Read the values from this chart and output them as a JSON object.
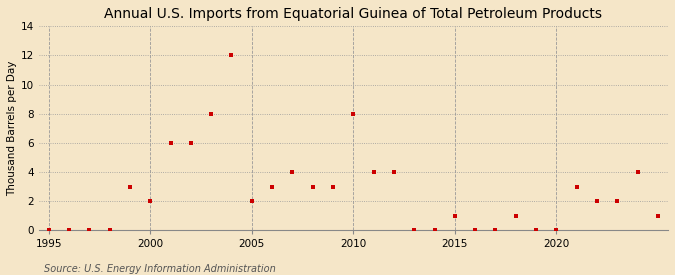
{
  "title": "Annual U.S. Imports from Equatorial Guinea of Total Petroleum Products",
  "ylabel": "Thousand Barrels per Day",
  "source": "Source: U.S. Energy Information Administration",
  "background_color": "#f5e6c8",
  "plot_bg_color": "#f5e6c8",
  "marker_color": "#cc0000",
  "xlim": [
    1994.5,
    2025.5
  ],
  "ylim": [
    0,
    14
  ],
  "yticks": [
    0,
    2,
    4,
    6,
    8,
    10,
    12,
    14
  ],
  "xticks": [
    1995,
    2000,
    2005,
    2010,
    2015,
    2020
  ],
  "data": [
    {
      "year": 1995,
      "value": 0
    },
    {
      "year": 1996,
      "value": 0
    },
    {
      "year": 1997,
      "value": 0
    },
    {
      "year": 1998,
      "value": 0
    },
    {
      "year": 1999,
      "value": 3
    },
    {
      "year": 2000,
      "value": 2
    },
    {
      "year": 2001,
      "value": 6
    },
    {
      "year": 2002,
      "value": 6
    },
    {
      "year": 2003,
      "value": 8
    },
    {
      "year": 2004,
      "value": 12
    },
    {
      "year": 2005,
      "value": 2
    },
    {
      "year": 2006,
      "value": 3
    },
    {
      "year": 2007,
      "value": 4
    },
    {
      "year": 2008,
      "value": 3
    },
    {
      "year": 2009,
      "value": 3
    },
    {
      "year": 2010,
      "value": 8
    },
    {
      "year": 2011,
      "value": 4
    },
    {
      "year": 2012,
      "value": 4
    },
    {
      "year": 2013,
      "value": 0
    },
    {
      "year": 2014,
      "value": 0
    },
    {
      "year": 2015,
      "value": 1
    },
    {
      "year": 2016,
      "value": 0
    },
    {
      "year": 2017,
      "value": 0
    },
    {
      "year": 2018,
      "value": 1
    },
    {
      "year": 2019,
      "value": 0
    },
    {
      "year": 2020,
      "value": 0
    },
    {
      "year": 2021,
      "value": 3
    },
    {
      "year": 2022,
      "value": 2
    },
    {
      "year": 2023,
      "value": 2
    },
    {
      "year": 2024,
      "value": 4
    },
    {
      "year": 2025,
      "value": 1
    }
  ],
  "vgrid_years": [
    1995,
    2000,
    2005,
    2010,
    2015,
    2020
  ],
  "title_fontsize": 10,
  "ylabel_fontsize": 7.5,
  "tick_fontsize": 7.5,
  "source_fontsize": 7
}
